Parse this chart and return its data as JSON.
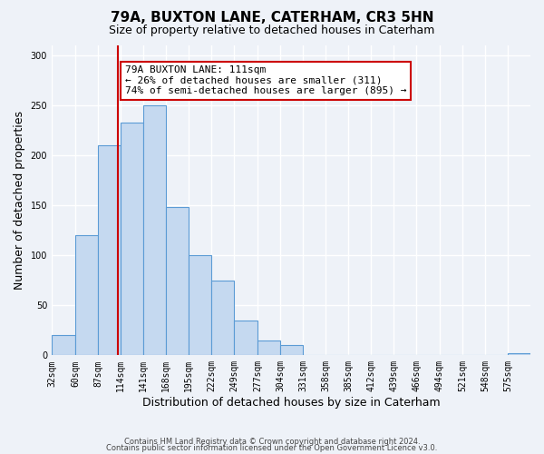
{
  "title": "79A, BUXTON LANE, CATERHAM, CR3 5HN",
  "subtitle": "Size of property relative to detached houses in Caterham",
  "xlabel": "Distribution of detached houses by size in Caterham",
  "ylabel": "Number of detached properties",
  "footer_lines": [
    "Contains HM Land Registry data © Crown copyright and database right 2024.",
    "Contains public sector information licensed under the Open Government Licence v3.0."
  ],
  "bin_labels": [
    "32sqm",
    "60sqm",
    "87sqm",
    "114sqm",
    "141sqm",
    "168sqm",
    "195sqm",
    "222sqm",
    "249sqm",
    "277sqm",
    "304sqm",
    "331sqm",
    "358sqm",
    "385sqm",
    "412sqm",
    "439sqm",
    "466sqm",
    "494sqm",
    "521sqm",
    "548sqm",
    "575sqm"
  ],
  "bar_heights": [
    20,
    120,
    210,
    233,
    250,
    148,
    100,
    75,
    35,
    15,
    10,
    0,
    0,
    0,
    0,
    0,
    0,
    0,
    0,
    0,
    2
  ],
  "bar_color": "#c5d9f0",
  "bar_edge_color": "#5b9bd5",
  "property_line_x": 111,
  "property_line_label": "79A BUXTON LANE: 111sqm",
  "annotation_line1": "← 26% of detached houses are smaller (311)",
  "annotation_line2": "74% of semi-detached houses are larger (895) →",
  "annotation_box_color": "#ffffff",
  "annotation_box_edge": "#cc0000",
  "property_line_color": "#cc0000",
  "ylim": [
    0,
    310
  ],
  "yticks": [
    0,
    50,
    100,
    150,
    200,
    250,
    300
  ],
  "bin_edges": [
    32,
    60,
    87,
    114,
    141,
    168,
    195,
    222,
    249,
    277,
    304,
    331,
    358,
    385,
    412,
    439,
    466,
    494,
    521,
    548,
    575
  ],
  "background_color": "#eef2f8",
  "plot_background_color": "#eef2f8"
}
